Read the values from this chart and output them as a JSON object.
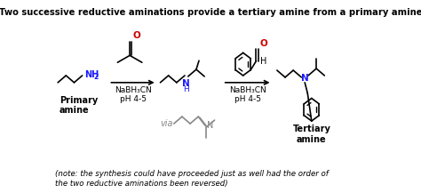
{
  "title": "Two successive reductive aminations provide a tertiary amine from a primary amine",
  "note": "(note: the synthesis could have proceeded just as well had the order of\nthe two reductive aminations been reversed)",
  "label_primary": "Primary\namine",
  "label_tertiary": "Tertiary\namine",
  "label_via": "via",
  "reagent1_line1": "NaBH₃CN",
  "reagent1_line2": "pH 4-5",
  "reagent2_line1": "NaBH₃CN",
  "reagent2_line2": "pH 4-5",
  "bg_color": "#ffffff",
  "bond_color": "#000000",
  "N_color": "#1a1aff",
  "O_color": "#cc0000",
  "gray_color": "#888888",
  "title_fontsize": 7.2,
  "note_fontsize": 6.2,
  "label_fontsize": 7.0,
  "reagent_fontsize": 6.5
}
